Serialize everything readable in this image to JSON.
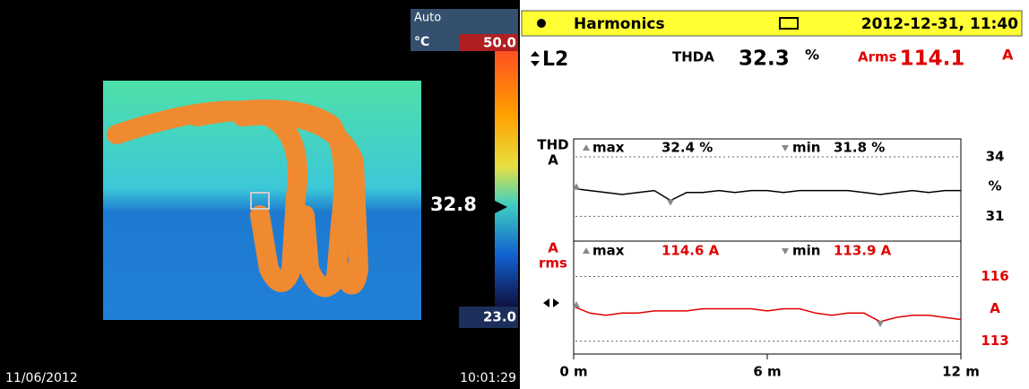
{
  "thermal": {
    "mode": "Auto",
    "unit": "°C",
    "scale_max": "50.0",
    "scale_min": "23.0",
    "spot": "32.8",
    "date": "11/06/2012",
    "time": "10:01:29"
  },
  "header": {
    "title": "Harmonics",
    "datetime": "2012-12-31, 11:40"
  },
  "readout": {
    "phase": "L2",
    "thda_label": "THDA",
    "thda_value": "32.3",
    "thda_unit": "%",
    "arms_label": "Arms",
    "arms_value": "114.1",
    "arms_unit": "A"
  },
  "trend": {
    "x": [
      0,
      0.5,
      1,
      1.5,
      2,
      2.5,
      3,
      3.5,
      4,
      4.5,
      5,
      5.5,
      6,
      6.5,
      7,
      7.5,
      8,
      8.5,
      9,
      9.5,
      10,
      10.5,
      11,
      11.5,
      12
    ],
    "xlim": [
      0,
      12
    ],
    "xticks": [
      {
        "value": 0,
        "label": "0 m"
      },
      {
        "value": 6,
        "label": "6 m"
      },
      {
        "value": 12,
        "label": "12 m"
      }
    ],
    "charts": [
      {
        "type": "line",
        "label": [
          "THD",
          "A"
        ],
        "color": "#000000",
        "max_label": "max",
        "max_value": "32.4 %",
        "min_label": "min",
        "min_value": "31.8 %",
        "ylim": [
          29.8,
          34.9
        ],
        "yticks": [
          34,
          31
        ],
        "y_unit": "%",
        "values": [
          32.4,
          32.3,
          32.2,
          32.1,
          32.2,
          32.3,
          31.8,
          32.2,
          32.2,
          32.3,
          32.2,
          32.3,
          32.3,
          32.2,
          32.3,
          32.3,
          32.3,
          32.3,
          32.2,
          32.1,
          32.2,
          32.3,
          32.2,
          32.3,
          32.3
        ]
      },
      {
        "type": "line",
        "label": [
          "A",
          "rms"
        ],
        "color": "#e00000",
        "max_label": "max",
        "max_value": "114.6 A",
        "min_label": "min",
        "min_value": "113.9 A",
        "ylim": [
          112.4,
          117.6
        ],
        "yticks": [
          116,
          113
        ],
        "y_unit": "A",
        "values": [
          114.6,
          114.3,
          114.2,
          114.3,
          114.3,
          114.4,
          114.4,
          114.4,
          114.5,
          114.5,
          114.5,
          114.5,
          114.4,
          114.5,
          114.5,
          114.3,
          114.2,
          114.3,
          114.3,
          113.9,
          114.1,
          114.2,
          114.2,
          114.1,
          114.0
        ]
      }
    ]
  }
}
